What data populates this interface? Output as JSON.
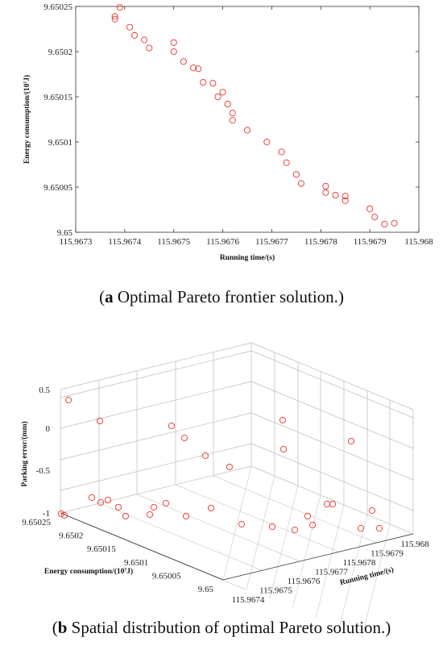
{
  "chart_data": [
    {
      "type": "scatter",
      "panel": "a",
      "xlabel": "Running time/(s)",
      "ylabel": "Energy consumption/(10⁷J)",
      "xlim": [
        115.9673,
        115.968
      ],
      "ylim": [
        9.65,
        9.65025
      ],
      "x_ticks": [
        "115.9673",
        "115.9674",
        "115.9675",
        "115.9676",
        "115.9677",
        "115.9678",
        "115.9679",
        "115.968"
      ],
      "y_ticks": [
        "9.65",
        "9.65005",
        "9.6501",
        "9.65015",
        "9.6502",
        "9.65025"
      ],
      "marker_color": "#e8332f",
      "points": [
        [
          115.96739,
          9.650249
        ],
        [
          115.96738,
          9.650239
        ],
        [
          115.96738,
          9.650236
        ],
        [
          115.96741,
          9.650227
        ],
        [
          115.96742,
          9.650218
        ],
        [
          115.96744,
          9.650213
        ],
        [
          115.96745,
          9.650204
        ],
        [
          115.9675,
          9.65021
        ],
        [
          115.9675,
          9.6502
        ],
        [
          115.96752,
          9.650189
        ],
        [
          115.96754,
          9.650182
        ],
        [
          115.96755,
          9.650181
        ],
        [
          115.96756,
          9.650166
        ],
        [
          115.96758,
          9.650165
        ],
        [
          115.96759,
          9.65015
        ],
        [
          115.9676,
          9.650155
        ],
        [
          115.96761,
          9.650142
        ],
        [
          115.96762,
          9.650132
        ],
        [
          115.96762,
          9.650124
        ],
        [
          115.96765,
          9.650113
        ],
        [
          115.96769,
          9.6501
        ],
        [
          115.96772,
          9.650089
        ],
        [
          115.96773,
          9.650077
        ],
        [
          115.96775,
          9.650064
        ],
        [
          115.96776,
          9.650054
        ],
        [
          115.96781,
          9.650051
        ],
        [
          115.96781,
          9.650044
        ],
        [
          115.96783,
          9.650041
        ],
        [
          115.96785,
          9.65004
        ],
        [
          115.96785,
          9.650035
        ],
        [
          115.9679,
          9.650026
        ],
        [
          115.96791,
          9.650017
        ],
        [
          115.96793,
          9.650009
        ],
        [
          115.96795,
          9.65001
        ]
      ]
    },
    {
      "type": "scatter3d",
      "panel": "b",
      "xlabel": "Running time/(s)",
      "ylabel": "Energy consumption/(10⁷J)",
      "zlabel": "Parking error/(mm)",
      "x_ticks": [
        "115.9674",
        "115.9675",
        "115.9676",
        "115.9677",
        "115.9678",
        "115.9679",
        "115.968"
      ],
      "y_ticks": [
        "9.65025",
        "9.6502",
        "9.65015",
        "9.6501",
        "9.65005",
        "9.65"
      ],
      "z_ticks": [
        "0.5",
        "0",
        "-0.5",
        "-1"
      ],
      "marker_color": "#e8332f"
    }
  ],
  "captions": {
    "a_label": "a",
    "a_text": " Optimal Pareto frontier solution.",
    "b_label": "b",
    "b_text": " Spatial distribution of optimal Pareto solution."
  }
}
